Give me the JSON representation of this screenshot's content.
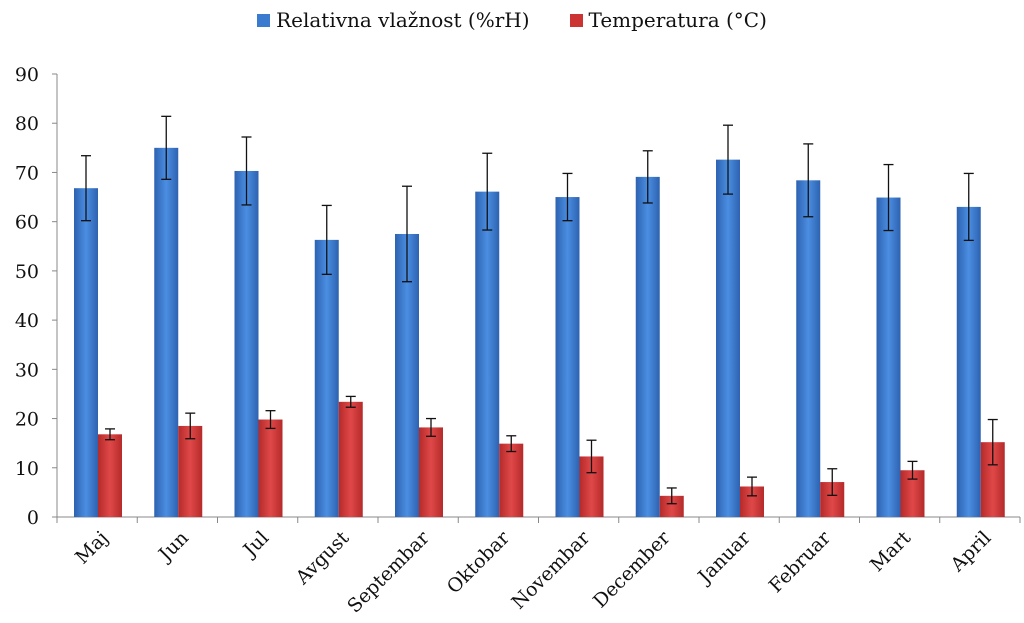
{
  "chart_data": {
    "type": "bar",
    "categories": [
      "Maj",
      "Jun",
      "Jul",
      "Avgust",
      "Septembar",
      "Oktobar",
      "Novembar",
      "December",
      "Januar",
      "Februar",
      "Mart",
      "April"
    ],
    "series": [
      {
        "name": "Relativna vlažnost (%rH)",
        "color": "#3a7bd0",
        "values": [
          66.8,
          75.0,
          70.3,
          56.3,
          57.5,
          66.1,
          65.0,
          69.1,
          72.6,
          68.4,
          64.9,
          63.0
        ],
        "error": [
          6.6,
          6.4,
          6.9,
          7.0,
          9.7,
          7.8,
          4.8,
          5.3,
          7.0,
          7.4,
          6.7,
          6.8
        ]
      },
      {
        "name": "Temperatura (°C)",
        "color": "#cc3333",
        "values": [
          16.8,
          18.5,
          19.8,
          23.4,
          18.2,
          14.9,
          12.3,
          4.3,
          6.2,
          7.1,
          9.5,
          15.2
        ],
        "error": [
          1.1,
          2.6,
          1.8,
          1.1,
          1.8,
          1.6,
          3.3,
          1.6,
          1.9,
          2.7,
          1.8,
          4.6
        ]
      }
    ],
    "ylim": [
      0,
      90
    ],
    "yticks": [
      0,
      10,
      20,
      30,
      40,
      50,
      60,
      70,
      80,
      90
    ],
    "xlabel": "",
    "ylabel": "",
    "grid": false,
    "legend_position": "top-center"
  }
}
